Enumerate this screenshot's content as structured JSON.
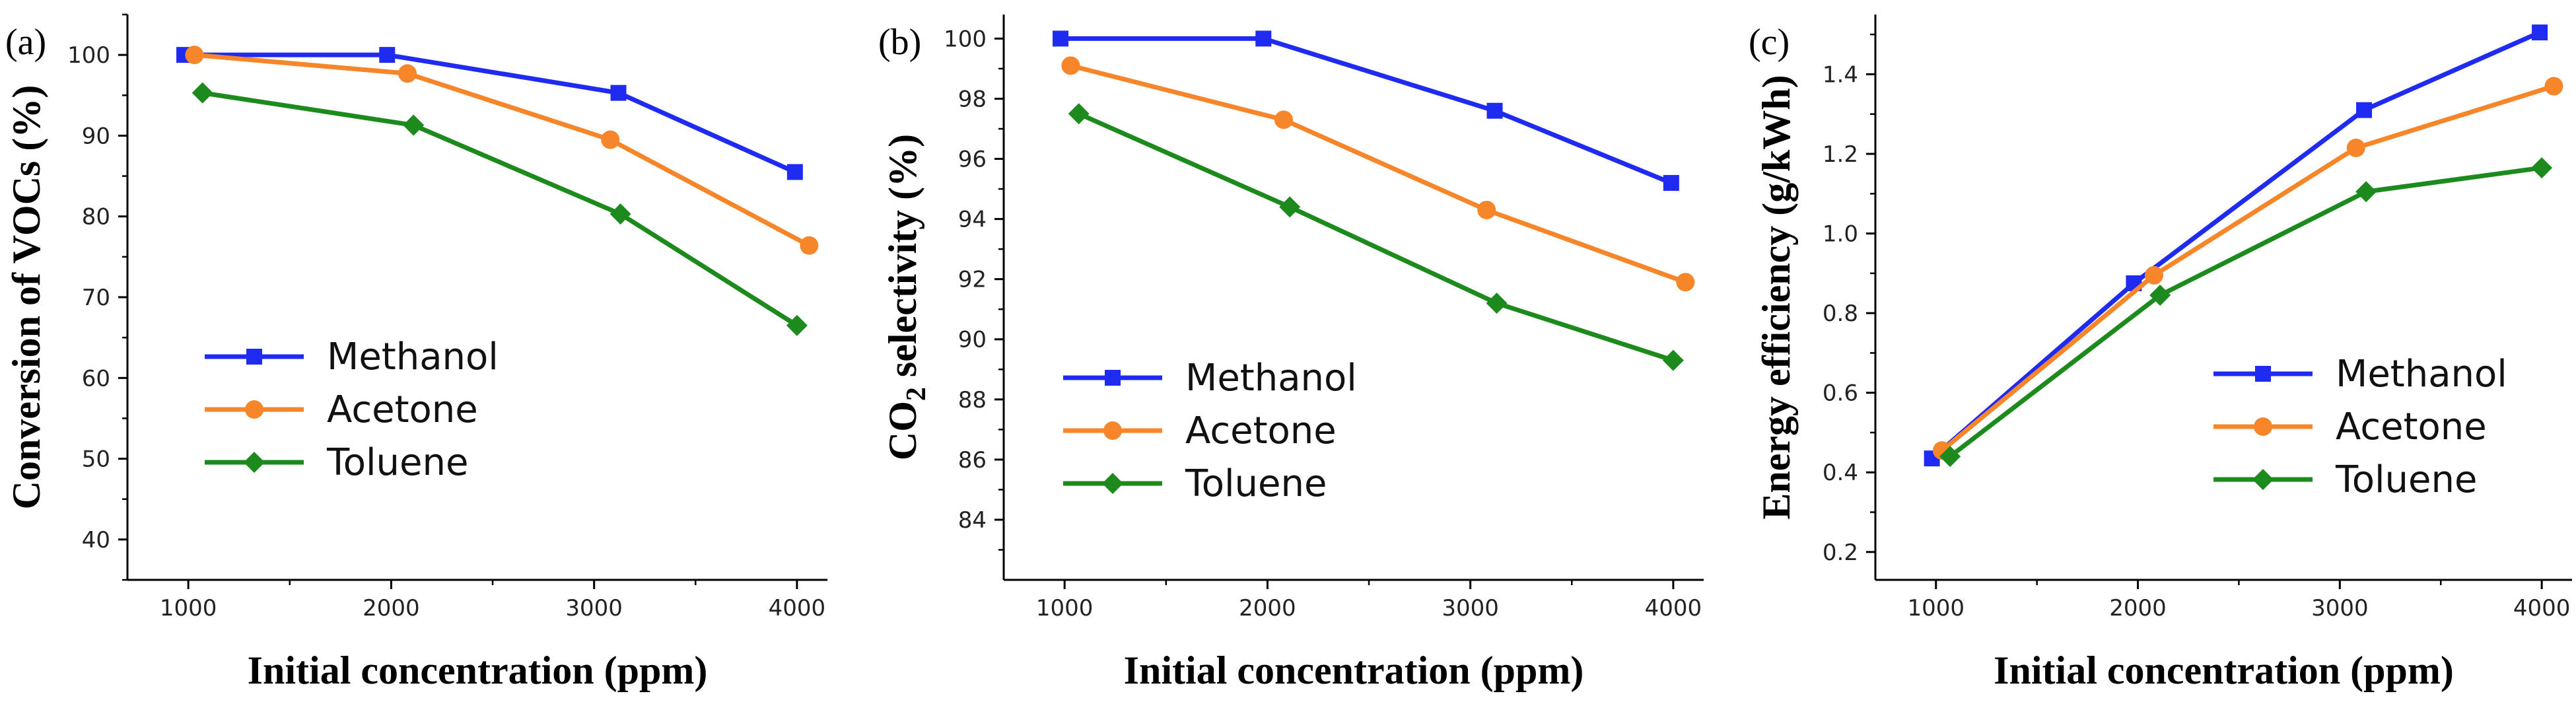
{
  "colors": {
    "Methanol": "#1f2bf0",
    "Acetone": "#f7862a",
    "Toluene": "#1c8a1c"
  },
  "chart_data": [
    {
      "type": "line",
      "panel_label": "(a)",
      "xlabel": "Initial concentration (ppm)",
      "ylabel": "Conversion of VOCs (%)",
      "xlim": [
        700,
        4150
      ],
      "ylim": [
        35,
        105
      ],
      "xticks": [
        1000,
        2000,
        3000,
        4000
      ],
      "yticks": [
        40,
        50,
        60,
        70,
        80,
        90,
        100
      ],
      "legend_position": "center-left",
      "series": [
        {
          "name": "Methanol",
          "marker": "square",
          "x": [
            980,
            1980,
            3120,
            3990
          ],
          "y": [
            100,
            100,
            95.3,
            85.5
          ]
        },
        {
          "name": "Acetone",
          "marker": "circle",
          "x": [
            1030,
            2080,
            3080,
            4060
          ],
          "y": [
            100,
            97.7,
            89.5,
            76.4
          ]
        },
        {
          "name": "Toluene",
          "marker": "diamond",
          "x": [
            1070,
            2110,
            3130,
            4000
          ],
          "y": [
            95.3,
            91.3,
            80.3,
            66.5
          ]
        }
      ]
    },
    {
      "type": "line",
      "panel_label": "(b)",
      "ylabel_prefix": "CO",
      "ylabel_sub": "2",
      "ylabel_suffix": " selectivity (%)",
      "xlabel": "Initial concentration (ppm)",
      "xlim": [
        700,
        4150
      ],
      "ylim": [
        82,
        100.8
      ],
      "xticks": [
        1000,
        2000,
        3000,
        4000
      ],
      "yticks": [
        84,
        86,
        88,
        90,
        92,
        94,
        96,
        98,
        100
      ],
      "legend_position": "bottom-left",
      "series": [
        {
          "name": "Methanol",
          "marker": "square",
          "x": [
            980,
            1980,
            3120,
            3990
          ],
          "y": [
            100,
            100,
            97.6,
            95.2
          ]
        },
        {
          "name": "Acetone",
          "marker": "circle",
          "x": [
            1030,
            2080,
            3080,
            4060
          ],
          "y": [
            99.1,
            97.3,
            94.3,
            91.9
          ]
        },
        {
          "name": "Toluene",
          "marker": "diamond",
          "x": [
            1070,
            2110,
            3130,
            4000
          ],
          "y": [
            97.5,
            94.4,
            91.2,
            89.3
          ]
        }
      ]
    },
    {
      "type": "line",
      "panel_label": "(c)",
      "xlabel": "Initial concentration (ppm)",
      "ylabel": "Energy efficiency (g/kWh)",
      "xlim": [
        700,
        4150
      ],
      "ylim": [
        0.13,
        1.55
      ],
      "xticks": [
        1000,
        2000,
        3000,
        4000
      ],
      "yticks": [
        "0.2",
        "0.4",
        "0.6",
        "0.8",
        "1.0",
        "1.2",
        "1.4"
      ],
      "legend_position": "bottom-right",
      "series": [
        {
          "name": "Methanol",
          "marker": "square",
          "x": [
            980,
            1980,
            3120,
            3990
          ],
          "y": [
            0.435,
            0.875,
            1.31,
            1.505
          ]
        },
        {
          "name": "Acetone",
          "marker": "circle",
          "x": [
            1030,
            2080,
            3080,
            4060
          ],
          "y": [
            0.455,
            0.895,
            1.215,
            1.37
          ]
        },
        {
          "name": "Toluene",
          "marker": "diamond",
          "x": [
            1070,
            2110,
            3130,
            4000
          ],
          "y": [
            0.44,
            0.845,
            1.105,
            1.165
          ]
        }
      ]
    }
  ]
}
